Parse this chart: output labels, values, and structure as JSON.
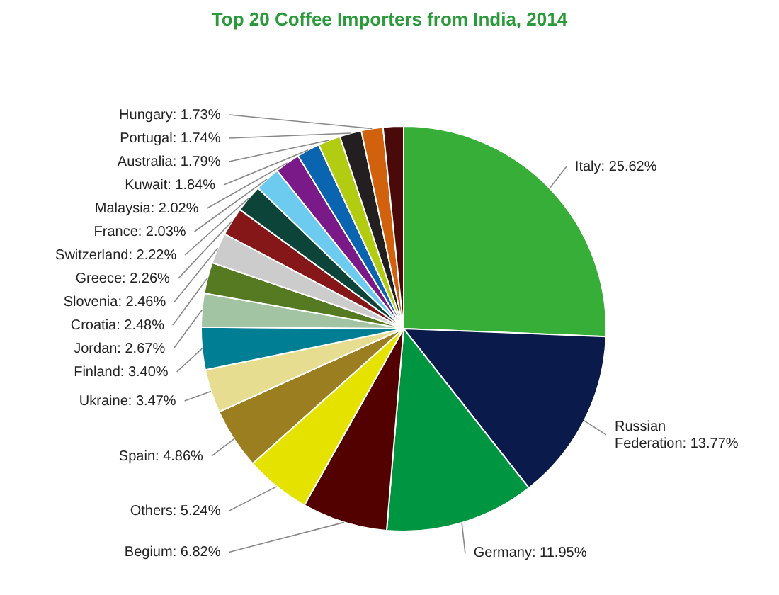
{
  "chart_data": {
    "type": "pie",
    "title": "Top 20 Coffee Importers from India, 2014",
    "categories": [
      "Italy",
      "Russian Federation",
      "Germany",
      "Begium",
      "Others",
      "Spain",
      "Ukraine",
      "Finland",
      "Jordan",
      "Croatia",
      "Slovenia",
      "Greece",
      "Switzerland",
      "France",
      "Malaysia",
      "Kuwait",
      "Australia",
      "Portugal",
      "Hungary",
      null
    ],
    "values": [
      25.62,
      13.77,
      11.95,
      6.82,
      5.24,
      4.86,
      3.47,
      3.4,
      2.67,
      2.48,
      2.46,
      2.26,
      2.22,
      2.03,
      2.02,
      1.84,
      1.79,
      1.74,
      1.73,
      1.63
    ],
    "colors": [
      "#37ae38",
      "#0a1a4a",
      "#009540",
      "#520000",
      "#e6e200",
      "#9b7e20",
      "#e6dd90",
      "#007e93",
      "#a3c4a2",
      "#557a22",
      "#cccccc",
      "#861718",
      "#0c443a",
      "#6ccbee",
      "#7a1a88",
      "#0a64b0",
      "#b2cc12",
      "#231f20",
      "#d1610c",
      "#4a0a0a"
    ],
    "value_labels": [
      "25.62%",
      "13.77%",
      "11.95%",
      "6.82%",
      "5.24%",
      "4.86%",
      "3.47%",
      "3.40%",
      "2.67%",
      "2.48%",
      "2.46%",
      "2.26%",
      "2.22%",
      "2.03%",
      "2.02%",
      "1.84%",
      "1.79%",
      "1.74%",
      "1.73%",
      null
    ]
  }
}
